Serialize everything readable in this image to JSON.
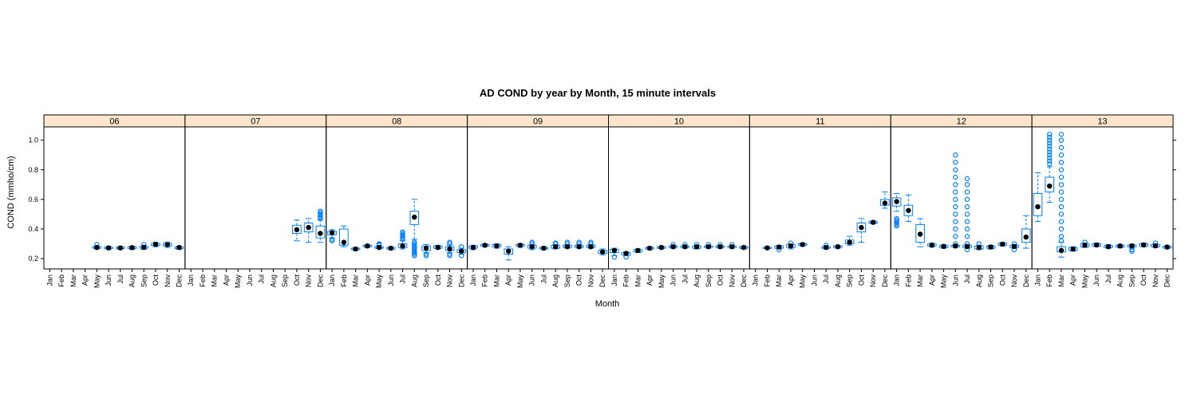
{
  "chart_data": {
    "type": "box",
    "title": "AD COND by year by Month, 15 minute intervals",
    "xlabel": "Month",
    "ylabel": "COND (mmho/cm)",
    "ylim": [
      0.13,
      1.09
    ],
    "yticks": [
      0.2,
      0.4,
      0.6,
      0.8,
      1.0
    ],
    "ytick_labels": [
      "0.2",
      "0.4",
      "0.6",
      "0.8",
      "1.0"
    ],
    "months": [
      "Jan",
      "Feb",
      "Mar",
      "Apr",
      "May",
      "Jun",
      "Jul",
      "Aug",
      "Sep",
      "Oct",
      "Nov",
      "Dec"
    ],
    "colors": {
      "strip_bg": "#ffe5cc",
      "box": "#0080ff",
      "median_dot": "#000000",
      "frame": "#000000"
    },
    "panels": [
      {
        "label": "06",
        "boxes": [
          {
            "m": 4,
            "q1": 0.27,
            "med": 0.275,
            "q3": 0.28,
            "lo": 0.265,
            "hi": 0.285,
            "out": [
              0.295
            ]
          },
          {
            "m": 5,
            "q1": 0.268,
            "med": 0.272,
            "q3": 0.277,
            "lo": 0.262,
            "hi": 0.282,
            "out": []
          },
          {
            "m": 6,
            "q1": 0.268,
            "med": 0.272,
            "q3": 0.277,
            "lo": 0.262,
            "hi": 0.282,
            "out": []
          },
          {
            "m": 7,
            "q1": 0.268,
            "med": 0.274,
            "q3": 0.279,
            "lo": 0.262,
            "hi": 0.284,
            "out": []
          },
          {
            "m": 8,
            "q1": 0.27,
            "med": 0.276,
            "q3": 0.282,
            "lo": 0.262,
            "hi": 0.29,
            "out": [
              0.295
            ]
          },
          {
            "m": 9,
            "q1": 0.288,
            "med": 0.296,
            "q3": 0.302,
            "lo": 0.28,
            "hi": 0.31,
            "out": []
          },
          {
            "m": 10,
            "q1": 0.285,
            "med": 0.295,
            "q3": 0.302,
            "lo": 0.275,
            "hi": 0.31,
            "out": []
          },
          {
            "m": 11,
            "q1": 0.268,
            "med": 0.275,
            "q3": 0.28,
            "lo": 0.262,
            "hi": 0.285,
            "out": []
          }
        ]
      },
      {
        "label": "07",
        "boxes": [
          {
            "m": 9,
            "q1": 0.37,
            "med": 0.395,
            "q3": 0.425,
            "lo": 0.32,
            "hi": 0.46,
            "out": []
          },
          {
            "m": 10,
            "q1": 0.38,
            "med": 0.41,
            "q3": 0.44,
            "lo": 0.31,
            "hi": 0.47,
            "out": []
          },
          {
            "m": 11,
            "q1": 0.34,
            "med": 0.37,
            "q3": 0.42,
            "lo": 0.31,
            "hi": 0.46,
            "out": [
              0.47,
              0.48,
              0.49,
              0.5,
              0.51,
              0.52
            ]
          }
        ]
      },
      {
        "label": "08",
        "boxes": [
          {
            "m": 0,
            "q1": 0.36,
            "med": 0.375,
            "q3": 0.385,
            "lo": 0.34,
            "hi": 0.395,
            "out": [
              0.32,
              0.33
            ]
          },
          {
            "m": 1,
            "q1": 0.29,
            "med": 0.31,
            "q3": 0.4,
            "lo": 0.28,
            "hi": 0.42,
            "out": []
          },
          {
            "m": 2,
            "q1": 0.26,
            "med": 0.265,
            "q3": 0.27,
            "lo": 0.255,
            "hi": 0.275,
            "out": []
          },
          {
            "m": 3,
            "q1": 0.28,
            "med": 0.285,
            "q3": 0.29,
            "lo": 0.275,
            "hi": 0.295,
            "out": []
          },
          {
            "m": 4,
            "q1": 0.27,
            "med": 0.275,
            "q3": 0.28,
            "lo": 0.265,
            "hi": 0.285,
            "out": [
              0.29,
              0.295,
              0.3
            ]
          },
          {
            "m": 5,
            "q1": 0.265,
            "med": 0.27,
            "q3": 0.275,
            "lo": 0.26,
            "hi": 0.28,
            "out": []
          },
          {
            "m": 6,
            "q1": 0.275,
            "med": 0.285,
            "q3": 0.3,
            "lo": 0.265,
            "hi": 0.32,
            "out": [
              0.33,
              0.34,
              0.35,
              0.36,
              0.37,
              0.38
            ]
          },
          {
            "m": 7,
            "q1": 0.43,
            "med": 0.48,
            "q3": 0.52,
            "lo": 0.33,
            "hi": 0.6,
            "out": [
              0.22,
              0.23,
              0.24,
              0.25,
              0.26,
              0.27,
              0.28,
              0.29,
              0.3,
              0.31
            ]
          },
          {
            "m": 8,
            "q1": 0.255,
            "med": 0.27,
            "q3": 0.285,
            "lo": 0.24,
            "hi": 0.295,
            "out": [
              0.22,
              0.23
            ]
          },
          {
            "m": 9,
            "q1": 0.27,
            "med": 0.275,
            "q3": 0.285,
            "lo": 0.265,
            "hi": 0.29,
            "out": []
          },
          {
            "m": 10,
            "q1": 0.255,
            "med": 0.265,
            "q3": 0.28,
            "lo": 0.24,
            "hi": 0.29,
            "out": [
              0.22,
              0.23,
              0.3,
              0.31
            ]
          },
          {
            "m": 11,
            "q1": 0.24,
            "med": 0.25,
            "q3": 0.26,
            "lo": 0.23,
            "hi": 0.27,
            "out": [
              0.22,
              0.28
            ]
          }
        ]
      },
      {
        "label": "09",
        "boxes": [
          {
            "m": 0,
            "q1": 0.27,
            "med": 0.275,
            "q3": 0.285,
            "lo": 0.26,
            "hi": 0.29,
            "out": []
          },
          {
            "m": 1,
            "q1": 0.285,
            "med": 0.29,
            "q3": 0.295,
            "lo": 0.28,
            "hi": 0.3,
            "out": []
          },
          {
            "m": 2,
            "q1": 0.28,
            "med": 0.285,
            "q3": 0.295,
            "lo": 0.27,
            "hi": 0.3,
            "out": []
          },
          {
            "m": 3,
            "q1": 0.23,
            "med": 0.25,
            "q3": 0.265,
            "lo": 0.19,
            "hi": 0.28,
            "out": []
          },
          {
            "m": 4,
            "q1": 0.285,
            "med": 0.29,
            "q3": 0.295,
            "lo": 0.275,
            "hi": 0.3,
            "out": []
          },
          {
            "m": 5,
            "q1": 0.27,
            "med": 0.28,
            "q3": 0.29,
            "lo": 0.26,
            "hi": 0.295,
            "out": [
              0.3,
              0.31
            ]
          },
          {
            "m": 6,
            "q1": 0.265,
            "med": 0.27,
            "q3": 0.275,
            "lo": 0.26,
            "hi": 0.28,
            "out": []
          },
          {
            "m": 7,
            "q1": 0.27,
            "med": 0.28,
            "q3": 0.29,
            "lo": 0.265,
            "hi": 0.295,
            "out": [
              0.3,
              0.305
            ]
          },
          {
            "m": 8,
            "q1": 0.275,
            "med": 0.28,
            "q3": 0.29,
            "lo": 0.27,
            "hi": 0.295,
            "out": [
              0.3,
              0.31
            ]
          },
          {
            "m": 9,
            "q1": 0.275,
            "med": 0.28,
            "q3": 0.29,
            "lo": 0.27,
            "hi": 0.295,
            "out": [
              0.3,
              0.31
            ]
          },
          {
            "m": 10,
            "q1": 0.275,
            "med": 0.28,
            "q3": 0.29,
            "lo": 0.27,
            "hi": 0.295,
            "out": [
              0.3,
              0.31
            ]
          },
          {
            "m": 11,
            "q1": 0.235,
            "med": 0.245,
            "q3": 0.255,
            "lo": 0.225,
            "hi": 0.265,
            "out": []
          }
        ]
      },
      {
        "label": "10",
        "boxes": [
          {
            "m": 0,
            "q1": 0.24,
            "med": 0.255,
            "q3": 0.262,
            "lo": 0.22,
            "hi": 0.27,
            "out": [
              0.21
            ]
          },
          {
            "m": 1,
            "q1": 0.225,
            "med": 0.235,
            "q3": 0.24,
            "lo": 0.22,
            "hi": 0.245,
            "out": [
              0.21
            ]
          },
          {
            "m": 2,
            "q1": 0.245,
            "med": 0.255,
            "q3": 0.26,
            "lo": 0.24,
            "hi": 0.265,
            "out": []
          },
          {
            "m": 3,
            "q1": 0.265,
            "med": 0.27,
            "q3": 0.275,
            "lo": 0.26,
            "hi": 0.28,
            "out": []
          },
          {
            "m": 4,
            "q1": 0.27,
            "med": 0.275,
            "q3": 0.28,
            "lo": 0.265,
            "hi": 0.285,
            "out": []
          },
          {
            "m": 5,
            "q1": 0.275,
            "med": 0.28,
            "q3": 0.285,
            "lo": 0.27,
            "hi": 0.29,
            "out": [
              0.295
            ]
          },
          {
            "m": 6,
            "q1": 0.275,
            "med": 0.28,
            "q3": 0.285,
            "lo": 0.27,
            "hi": 0.29,
            "out": [
              0.295
            ]
          },
          {
            "m": 7,
            "q1": 0.27,
            "med": 0.28,
            "q3": 0.285,
            "lo": 0.265,
            "hi": 0.29,
            "out": [
              0.295
            ]
          },
          {
            "m": 8,
            "q1": 0.275,
            "med": 0.28,
            "q3": 0.285,
            "lo": 0.27,
            "hi": 0.29,
            "out": [
              0.295
            ]
          },
          {
            "m": 9,
            "q1": 0.275,
            "med": 0.28,
            "q3": 0.285,
            "lo": 0.27,
            "hi": 0.29,
            "out": [
              0.295
            ]
          },
          {
            "m": 10,
            "q1": 0.275,
            "med": 0.28,
            "q3": 0.285,
            "lo": 0.27,
            "hi": 0.29,
            "out": [
              0.295
            ]
          },
          {
            "m": 11,
            "q1": 0.27,
            "med": 0.275,
            "q3": 0.28,
            "lo": 0.265,
            "hi": 0.285,
            "out": []
          }
        ]
      },
      {
        "label": "11",
        "boxes": [
          {
            "m": 1,
            "q1": 0.268,
            "med": 0.272,
            "q3": 0.276,
            "lo": 0.265,
            "hi": 0.28,
            "out": []
          },
          {
            "m": 2,
            "q1": 0.27,
            "med": 0.278,
            "q3": 0.285,
            "lo": 0.265,
            "hi": 0.29,
            "out": [
              0.26
            ]
          },
          {
            "m": 3,
            "q1": 0.275,
            "med": 0.285,
            "q3": 0.295,
            "lo": 0.265,
            "hi": 0.3,
            "out": [
              0.305
            ]
          },
          {
            "m": 4,
            "q1": 0.29,
            "med": 0.295,
            "q3": 0.3,
            "lo": 0.285,
            "hi": 0.305,
            "out": []
          },
          {
            "m": 6,
            "q1": 0.27,
            "med": 0.275,
            "q3": 0.28,
            "lo": 0.265,
            "hi": 0.285,
            "out": [
              0.29
            ]
          },
          {
            "m": 7,
            "q1": 0.275,
            "med": 0.28,
            "q3": 0.285,
            "lo": 0.27,
            "hi": 0.29,
            "out": []
          },
          {
            "m": 8,
            "q1": 0.3,
            "med": 0.31,
            "q3": 0.325,
            "lo": 0.29,
            "hi": 0.35,
            "out": []
          },
          {
            "m": 9,
            "q1": 0.38,
            "med": 0.41,
            "q3": 0.44,
            "lo": 0.31,
            "hi": 0.47,
            "out": []
          },
          {
            "m": 10,
            "q1": 0.44,
            "med": 0.445,
            "q3": 0.45,
            "lo": 0.435,
            "hi": 0.455,
            "out": []
          },
          {
            "m": 11,
            "q1": 0.56,
            "med": 0.575,
            "q3": 0.6,
            "lo": 0.54,
            "hi": 0.65,
            "out": []
          }
        ]
      },
      {
        "label": "12",
        "boxes": [
          {
            "m": 0,
            "q1": 0.555,
            "med": 0.585,
            "q3": 0.61,
            "lo": 0.52,
            "hi": 0.64,
            "out": [
              0.42,
              0.43,
              0.44,
              0.45,
              0.46,
              0.47
            ]
          },
          {
            "m": 1,
            "q1": 0.49,
            "med": 0.525,
            "q3": 0.56,
            "lo": 0.45,
            "hi": 0.63,
            "out": []
          },
          {
            "m": 2,
            "q1": 0.31,
            "med": 0.365,
            "q3": 0.43,
            "lo": 0.28,
            "hi": 0.47,
            "out": []
          },
          {
            "m": 3,
            "q1": 0.285,
            "med": 0.29,
            "q3": 0.298,
            "lo": 0.28,
            "hi": 0.305,
            "out": []
          },
          {
            "m": 4,
            "q1": 0.275,
            "med": 0.282,
            "q3": 0.288,
            "lo": 0.27,
            "hi": 0.295,
            "out": []
          },
          {
            "m": 5,
            "q1": 0.28,
            "med": 0.285,
            "q3": 0.29,
            "lo": 0.275,
            "hi": 0.295,
            "out": [
              0.3,
              0.35,
              0.4,
              0.45,
              0.5,
              0.55,
              0.6,
              0.65,
              0.7,
              0.75,
              0.8,
              0.85,
              0.9
            ]
          },
          {
            "m": 6,
            "q1": 0.275,
            "med": 0.282,
            "q3": 0.29,
            "lo": 0.27,
            "hi": 0.295,
            "out": [
              0.26,
              0.3,
              0.35,
              0.4,
              0.45,
              0.5,
              0.55,
              0.6,
              0.65,
              0.7,
              0.74
            ]
          },
          {
            "m": 7,
            "q1": 0.265,
            "med": 0.275,
            "q3": 0.285,
            "lo": 0.26,
            "hi": 0.29,
            "out": [
              0.3
            ]
          },
          {
            "m": 8,
            "q1": 0.27,
            "med": 0.278,
            "q3": 0.285,
            "lo": 0.265,
            "hi": 0.29,
            "out": []
          },
          {
            "m": 9,
            "q1": 0.29,
            "med": 0.297,
            "q3": 0.303,
            "lo": 0.285,
            "hi": 0.31,
            "out": []
          },
          {
            "m": 10,
            "q1": 0.275,
            "med": 0.282,
            "q3": 0.29,
            "lo": 0.27,
            "hi": 0.295,
            "out": [
              0.26,
              0.3
            ]
          },
          {
            "m": 11,
            "q1": 0.31,
            "med": 0.345,
            "q3": 0.4,
            "lo": 0.27,
            "hi": 0.49,
            "out": []
          }
        ]
      },
      {
        "label": "13",
        "boxes": [
          {
            "m": 0,
            "q1": 0.49,
            "med": 0.55,
            "q3": 0.64,
            "lo": 0.45,
            "hi": 0.78,
            "out": []
          },
          {
            "m": 1,
            "q1": 0.65,
            "med": 0.69,
            "q3": 0.75,
            "lo": 0.58,
            "hi": 0.82,
            "out": [
              0.84,
              0.86,
              0.88,
              0.9,
              0.92,
              0.94,
              0.96,
              0.98,
              1.0,
              1.02,
              1.04
            ]
          },
          {
            "m": 2,
            "q1": 0.245,
            "med": 0.255,
            "q3": 0.28,
            "lo": 0.21,
            "hi": 0.31,
            "out": [
              0.32,
              0.35,
              0.4,
              0.45,
              0.5,
              0.55,
              0.6,
              0.65,
              0.7,
              0.75,
              0.8,
              0.85,
              0.9,
              0.95,
              1.0,
              1.04
            ]
          },
          {
            "m": 3,
            "q1": 0.255,
            "med": 0.265,
            "q3": 0.275,
            "lo": 0.25,
            "hi": 0.28,
            "out": []
          },
          {
            "m": 4,
            "q1": 0.28,
            "med": 0.29,
            "q3": 0.3,
            "lo": 0.275,
            "hi": 0.305,
            "out": [
              0.31
            ]
          },
          {
            "m": 5,
            "q1": 0.285,
            "med": 0.292,
            "q3": 0.3,
            "lo": 0.28,
            "hi": 0.305,
            "out": []
          },
          {
            "m": 6,
            "q1": 0.275,
            "med": 0.28,
            "q3": 0.288,
            "lo": 0.27,
            "hi": 0.295,
            "out": []
          },
          {
            "m": 7,
            "q1": 0.278,
            "med": 0.285,
            "q3": 0.29,
            "lo": 0.272,
            "hi": 0.295,
            "out": []
          },
          {
            "m": 8,
            "q1": 0.278,
            "med": 0.286,
            "q3": 0.292,
            "lo": 0.27,
            "hi": 0.296,
            "out": [
              0.25,
              0.26
            ]
          },
          {
            "m": 9,
            "q1": 0.285,
            "med": 0.292,
            "q3": 0.3,
            "lo": 0.28,
            "hi": 0.305,
            "out": []
          },
          {
            "m": 10,
            "q1": 0.28,
            "med": 0.286,
            "q3": 0.295,
            "lo": 0.275,
            "hi": 0.3,
            "out": [
              0.305
            ]
          },
          {
            "m": 11,
            "q1": 0.272,
            "med": 0.278,
            "q3": 0.283,
            "lo": 0.268,
            "hi": 0.287,
            "out": []
          }
        ]
      }
    ]
  }
}
